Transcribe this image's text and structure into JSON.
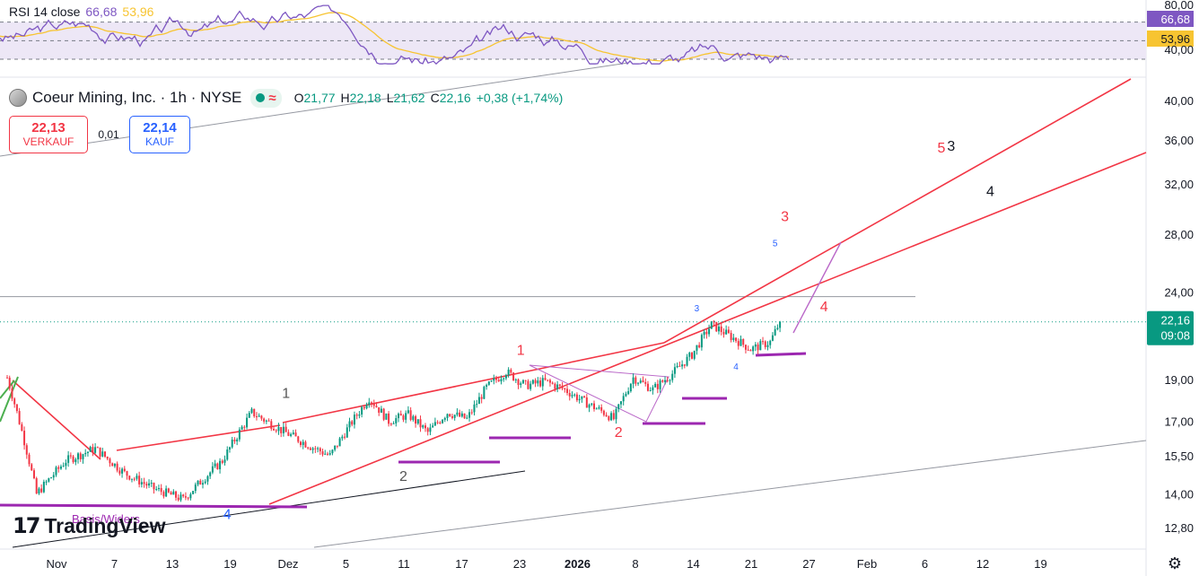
{
  "legend": {
    "symbol": "Coeur Mining, Inc. · 1h · NYSE",
    "open_label": "O",
    "open": "21,77",
    "high_label": "H",
    "high": "22,18",
    "low_label": "L",
    "low": "21,62",
    "close_label": "C",
    "close": "22,16",
    "change": "+0,38 (+1,74%)",
    "wave_glyph": "≈"
  },
  "trade": {
    "sell_price": "22,13",
    "sell_label": "VERKAUF",
    "spread": "0,01",
    "buy_price": "22,14",
    "buy_label": "KAUF"
  },
  "rsi": {
    "label": "RSI 14 close",
    "value": "66,68",
    "ma_value": "53,96",
    "levels": [
      80,
      70,
      50,
      30
    ],
    "level_labels": [
      "80,00",
      "40,00"
    ],
    "colors": {
      "rsi": "#7e57c2",
      "ma": "#f7c431",
      "band": "#ede7f6"
    }
  },
  "branding": {
    "logo_mark": "17",
    "name": "TradingView",
    "support_label": "Basis/Widers"
  },
  "colors": {
    "up": "#089981",
    "down": "#f23645",
    "channel": "#f23645",
    "support": "#9c27b0",
    "wave_blue": "#2962ff"
  },
  "chart_data": {
    "type": "candlestick",
    "title": "Coeur Mining, Inc. · 1h · NYSE",
    "y_scale": "log",
    "ylim": [
      12.4,
      42.5
    ],
    "y_ticks": [
      {
        "v": 40,
        "label": "40,00"
      },
      {
        "v": 36,
        "label": "36,00"
      },
      {
        "v": 32,
        "label": "32,00"
      },
      {
        "v": 28,
        "label": "28,00"
      },
      {
        "v": 24,
        "label": "24,00"
      },
      {
        "v": 19,
        "label": "19,00"
      },
      {
        "v": 17,
        "label": "17,00"
      },
      {
        "v": 15.5,
        "label": "15,50"
      },
      {
        "v": 14,
        "label": "14,00"
      },
      {
        "v": 12.8,
        "label": "12,80"
      }
    ],
    "x_ticks": [
      "Nov",
      "7",
      "13",
      "19",
      "Dez",
      "5",
      "11",
      "17",
      "23",
      "2026",
      "8",
      "14",
      "21",
      "27",
      "Feb",
      "6",
      "12",
      "19"
    ],
    "x_tick_bold": "2026",
    "last_price": {
      "value": 22.16,
      "label": "22,16",
      "countdown": "09:08"
    },
    "horizontal_level": 23.7,
    "wave_anchors": [
      {
        "t": 0,
        "p": 19.1
      },
      {
        "t": 3,
        "p": 14.0
      },
      {
        "t": 6,
        "p": 15.3
      },
      {
        "t": 9,
        "p": 15.8
      },
      {
        "t": 12,
        "p": 14.8
      },
      {
        "t": 15,
        "p": 14.2
      },
      {
        "t": 18,
        "p": 13.8
      },
      {
        "t": 22,
        "p": 15.3
      },
      {
        "t": 25,
        "p": 17.4
      },
      {
        "t": 28,
        "p": 16.6
      },
      {
        "t": 31,
        "p": 15.9
      },
      {
        "t": 33,
        "p": 15.5
      },
      {
        "t": 35,
        "p": 16.8
      },
      {
        "t": 37,
        "p": 18.1
      },
      {
        "t": 39,
        "p": 17.0
      },
      {
        "t": 41,
        "p": 17.3
      },
      {
        "t": 43,
        "p": 16.5
      },
      {
        "t": 45,
        "p": 17.4
      },
      {
        "t": 47,
        "p": 17.1
      },
      {
        "t": 49,
        "p": 18.6
      },
      {
        "t": 51,
        "p": 19.4
      },
      {
        "t": 53,
        "p": 18.7
      },
      {
        "t": 55,
        "p": 18.9
      },
      {
        "t": 57,
        "p": 18.5
      },
      {
        "t": 59,
        "p": 17.9
      },
      {
        "t": 61,
        "p": 17.4
      },
      {
        "t": 62,
        "p": 17.1
      },
      {
        "t": 64,
        "p": 19.1
      },
      {
        "t": 66,
        "p": 18.5
      },
      {
        "t": 68,
        "p": 19.3
      },
      {
        "t": 70,
        "p": 20.3
      },
      {
        "t": 72,
        "p": 22.0
      },
      {
        "t": 74,
        "p": 21.3
      },
      {
        "t": 76,
        "p": 20.6
      },
      {
        "t": 78,
        "p": 21.0
      },
      {
        "t": 79,
        "p": 22.16
      }
    ],
    "annotations": [
      {
        "text": "1",
        "t": 28.5,
        "p": 18.1,
        "color": "#555"
      },
      {
        "text": "2",
        "t": 40.5,
        "p": 14.5,
        "color": "#555"
      },
      {
        "text": "4",
        "t": 22.5,
        "p": 13.1,
        "color": "#2962ff"
      },
      {
        "text": "1",
        "t": 52.5,
        "p": 20.3,
        "color": "#f23645"
      },
      {
        "text": "2",
        "t": 62.5,
        "p": 16.3,
        "color": "#f23645"
      },
      {
        "text": "3",
        "t": 70.5,
        "p": 22.8,
        "color": "#2962ff"
      },
      {
        "text": "4",
        "t": 74.5,
        "p": 19.5,
        "color": "#2962ff"
      },
      {
        "text": "5",
        "t": 78.5,
        "p": 27.1,
        "color": "#2962ff"
      },
      {
        "text": "3",
        "t": 79.5,
        "p": 29.0,
        "color": "#f23645"
      },
      {
        "text": "4",
        "t": 83.5,
        "p": 22.8,
        "color": "#f23645"
      },
      {
        "text": "5",
        "t": 95.5,
        "p": 34.8,
        "color": "#f23645"
      },
      {
        "text": "3",
        "t": 96.5,
        "p": 35.0,
        "color": "#131722"
      },
      {
        "text": "4",
        "t": 100.5,
        "p": 31.0,
        "color": "#131722"
      }
    ]
  }
}
